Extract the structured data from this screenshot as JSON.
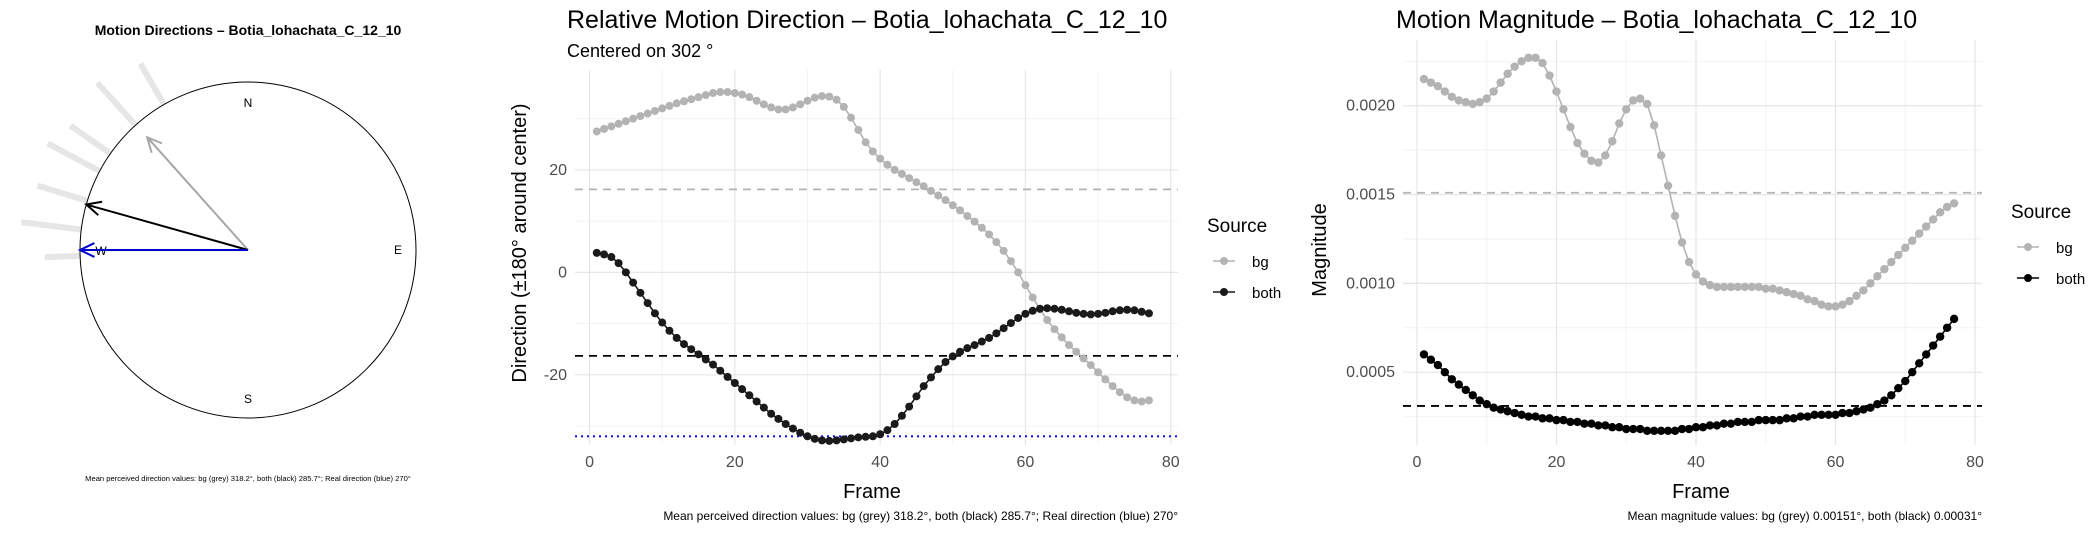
{
  "chart_data": [
    {
      "type": "polar-arrows",
      "title": "Motion Directions – Botia_lohachata_C_12_10",
      "compass": {
        "n": "N",
        "e": "E",
        "s": "S",
        "w": "W"
      },
      "arrows": [
        {
          "name": "bg",
          "angle_deg": 318.2,
          "length": 0.9,
          "color": "#a6a6a6"
        },
        {
          "name": "both",
          "angle_deg": 285.7,
          "length": 1.0,
          "color": "#000000"
        },
        {
          "name": "real",
          "angle_deg": 270,
          "length": 1.0,
          "color": "#0000cc"
        }
      ],
      "rays": [
        {
          "angle_deg": 330,
          "length": 1.28
        },
        {
          "angle_deg": 318,
          "length": 1.34
        },
        {
          "angle_deg": 305,
          "length": 1.29
        },
        {
          "angle_deg": 298,
          "length": 1.35
        },
        {
          "angle_deg": 287,
          "length": 1.31
        },
        {
          "angle_deg": 277,
          "length": 1.36
        },
        {
          "angle_deg": 268,
          "length": 1.21
        }
      ],
      "caption": "Mean perceived direction values: bg (grey) 318.2°, both (black) 285.7°; Real direction (blue) 270°"
    },
    {
      "type": "line",
      "title": "Relative Motion Direction – Botia_lohachata_C_12_10",
      "subtitle": "Centered on  302 °",
      "xlabel": "Frame",
      "ylabel": "Direction (±180° around center)",
      "xlim": [
        -2,
        81
      ],
      "ylim": [
        -33.7,
        39.5
      ],
      "xticks": [
        0,
        20,
        40,
        60,
        80
      ],
      "yticks": [
        -20,
        0,
        20
      ],
      "grid": true,
      "legend": {
        "title": "Source",
        "position": "right"
      },
      "x": [
        1,
        2,
        3,
        4,
        5,
        6,
        7,
        8,
        9,
        10,
        11,
        12,
        13,
        14,
        15,
        16,
        17,
        18,
        19,
        20,
        21,
        22,
        23,
        24,
        25,
        26,
        27,
        28,
        29,
        30,
        31,
        32,
        33,
        34,
        35,
        36,
        37,
        38,
        39,
        40,
        41,
        42,
        43,
        44,
        45,
        46,
        47,
        48,
        49,
        50,
        51,
        52,
        53,
        54,
        55,
        56,
        57,
        58,
        59,
        60,
        61,
        62,
        63,
        64,
        65,
        66,
        67,
        68,
        69,
        70,
        71,
        72,
        73,
        74,
        75,
        76,
        77
      ],
      "series": [
        {
          "name": "bg",
          "color": "#b3b3b3",
          "values": [
            27.5,
            28,
            28.5,
            29,
            29.5,
            30,
            30.5,
            31,
            31.5,
            32,
            32.5,
            33,
            33.4,
            33.8,
            34.2,
            34.6,
            35,
            35.2,
            35.2,
            35,
            34.7,
            34.2,
            33.5,
            32.8,
            32.2,
            31.8,
            31.8,
            32.2,
            32.8,
            33.5,
            34.1,
            34.4,
            34.3,
            33.7,
            32.3,
            30.2,
            27.8,
            25.4,
            23.6,
            22.2,
            21,
            20,
            19.2,
            18.4,
            17.6,
            16.8,
            15.9,
            15,
            14.1,
            13.1,
            12.1,
            11,
            9.9,
            8.7,
            7.4,
            5.9,
            4.2,
            2.2,
            0,
            -2.5,
            -4.9,
            -7.2,
            -9.3,
            -11.1,
            -12.7,
            -14.2,
            -15.5,
            -16.8,
            -18.1,
            -19.5,
            -20.9,
            -22.2,
            -23.4,
            -24.4,
            -25,
            -25.2,
            -25
          ]
        },
        {
          "name": "both",
          "color": "#1a1a1a",
          "values": [
            3.8,
            3.5,
            3,
            1.8,
            0,
            -2,
            -4,
            -6,
            -8,
            -9.8,
            -11.4,
            -12.8,
            -14,
            -15,
            -16,
            -17,
            -18,
            -19.2,
            -20.4,
            -21.6,
            -22.8,
            -24,
            -25.2,
            -26.4,
            -27.6,
            -28.6,
            -29.6,
            -30.5,
            -31.3,
            -32,
            -32.5,
            -32.8,
            -32.9,
            -32.8,
            -32.6,
            -32.4,
            -32.2,
            -32.1,
            -32,
            -31.6,
            -30.8,
            -29.6,
            -28,
            -26.2,
            -24.2,
            -22.2,
            -20.5,
            -18.9,
            -17.5,
            -16.4,
            -15.5,
            -14.8,
            -14.2,
            -13.5,
            -12.8,
            -11.9,
            -10.9,
            -9.9,
            -8.9,
            -8.1,
            -7.5,
            -7.1,
            -7,
            -7.1,
            -7.3,
            -7.6,
            -7.9,
            -8.1,
            -8.2,
            -8.1,
            -7.9,
            -7.6,
            -7.4,
            -7.3,
            -7.4,
            -7.7,
            -8
          ]
        }
      ],
      "reference_lines": [
        {
          "name": "bg mean",
          "y": 16.2,
          "color": "#b3b3b3",
          "style": "dashed"
        },
        {
          "name": "both mean",
          "y": -16.3,
          "color": "#000000",
          "style": "dashed"
        },
        {
          "name": "real",
          "y": -32,
          "color": "#0000ff",
          "style": "dotted"
        }
      ],
      "caption": "Mean perceived direction values: bg (grey) 318.2°, both (black) 285.7°; Real direction (blue) 270°"
    },
    {
      "type": "line",
      "title": "Motion Magnitude – Botia_lohachata_C_12_10",
      "xlabel": "Frame",
      "ylabel": "Magnitude",
      "xlim": [
        -2,
        81
      ],
      "ylim": [
        9e-05,
        0.00237
      ],
      "xticks": [
        0,
        20,
        40,
        60,
        80
      ],
      "yticks": [
        0.0005,
        0.001,
        0.0015,
        0.002
      ],
      "ytick_labels": [
        "0.0005",
        "0.0010",
        "0.0015",
        "0.0020"
      ],
      "grid": true,
      "legend": {
        "title": "Source",
        "position": "right"
      },
      "x": [
        1,
        2,
        3,
        4,
        5,
        6,
        7,
        8,
        9,
        10,
        11,
        12,
        13,
        14,
        15,
        16,
        17,
        18,
        19,
        20,
        21,
        22,
        23,
        24,
        25,
        26,
        27,
        28,
        29,
        30,
        31,
        32,
        33,
        34,
        35,
        36,
        37,
        38,
        39,
        40,
        41,
        42,
        43,
        44,
        45,
        46,
        47,
        48,
        49,
        50,
        51,
        52,
        53,
        54,
        55,
        56,
        57,
        58,
        59,
        60,
        61,
        62,
        63,
        64,
        65,
        66,
        67,
        68,
        69,
        70,
        71,
        72,
        73,
        74,
        75,
        76,
        77
      ],
      "series": [
        {
          "name": "bg",
          "color": "#b3b3b3",
          "values": [
            0.00215,
            0.00213,
            0.00211,
            0.00208,
            0.00205,
            0.00203,
            0.00202,
            0.00201,
            0.00202,
            0.00204,
            0.00208,
            0.00213,
            0.00218,
            0.00222,
            0.00225,
            0.00227,
            0.00227,
            0.00224,
            0.00217,
            0.00208,
            0.00198,
            0.00188,
            0.00179,
            0.00173,
            0.00169,
            0.00168,
            0.00172,
            0.0018,
            0.0019,
            0.00198,
            0.00203,
            0.00204,
            0.00201,
            0.00189,
            0.00172,
            0.00155,
            0.00138,
            0.00123,
            0.00112,
            0.00105,
            0.00101,
            0.00099,
            0.00098,
            0.00098,
            0.00098,
            0.00098,
            0.00098,
            0.00098,
            0.00098,
            0.00097,
            0.00097,
            0.00096,
            0.00095,
            0.00094,
            0.00093,
            0.00091,
            0.0009,
            0.00088,
            0.00087,
            0.00087,
            0.00088,
            0.0009,
            0.00093,
            0.00096,
            0.001,
            0.00104,
            0.00108,
            0.00112,
            0.00116,
            0.0012,
            0.00124,
            0.00128,
            0.00132,
            0.00136,
            0.0014,
            0.00143,
            0.00145
          ]
        },
        {
          "name": "both",
          "color": "#000000",
          "values": [
            0.0006,
            0.00057,
            0.00054,
            0.0005,
            0.00046,
            0.00043,
            0.0004,
            0.00037,
            0.00034,
            0.00032,
            0.0003,
            0.00029,
            0.00028,
            0.00027,
            0.00026,
            0.00025,
            0.00025,
            0.00024,
            0.00024,
            0.00023,
            0.00023,
            0.00022,
            0.00022,
            0.00021,
            0.00021,
            0.0002,
            0.0002,
            0.00019,
            0.00019,
            0.00018,
            0.00018,
            0.00018,
            0.00017,
            0.00017,
            0.00017,
            0.00017,
            0.00017,
            0.00018,
            0.00018,
            0.00019,
            0.00019,
            0.0002,
            0.0002,
            0.00021,
            0.00021,
            0.00022,
            0.00022,
            0.00022,
            0.00023,
            0.00023,
            0.00023,
            0.00023,
            0.00024,
            0.00024,
            0.00025,
            0.00025,
            0.00026,
            0.00026,
            0.00026,
            0.00026,
            0.00027,
            0.00027,
            0.00028,
            0.00029,
            0.0003,
            0.00032,
            0.00034,
            0.00037,
            0.00041,
            0.00045,
            0.0005,
            0.00055,
            0.0006,
            0.00065,
            0.0007,
            0.00075,
            0.0008
          ]
        }
      ],
      "reference_lines": [
        {
          "name": "bg mean",
          "y": 0.00151,
          "color": "#b3b3b3",
          "style": "dashed"
        },
        {
          "name": "both mean",
          "y": 0.00031,
          "color": "#000000",
          "style": "dashed"
        }
      ],
      "caption": "Mean magnitude values: bg (grey) 0.00151°, both (black) 0.00031°"
    }
  ]
}
